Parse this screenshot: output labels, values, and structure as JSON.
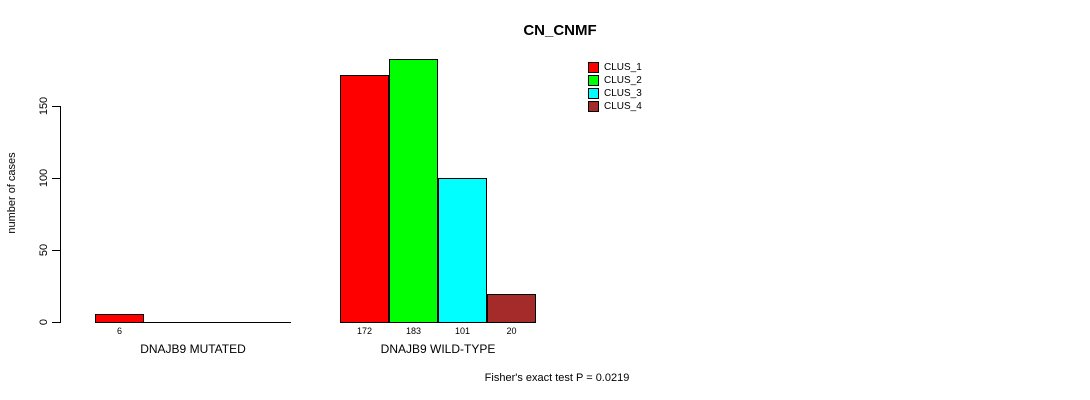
{
  "page": {
    "background_color": "#ffffff"
  },
  "chart_data": {
    "type": "bar",
    "title": "CN_CNMF",
    "xlabel": "",
    "ylabel": "number of cases",
    "ylim": [
      0,
      150
    ],
    "yticks": [
      0,
      50,
      100,
      150
    ],
    "grid": false,
    "legend_position": "top-right",
    "bar_border_color": "#000000",
    "axis_color": "#000000",
    "categories": [
      "DNAJB9 MUTATED",
      "DNAJB9 WILD-TYPE"
    ],
    "series": [
      {
        "name": "CLUS_1",
        "color": "#ff0000",
        "values": [
          6,
          172
        ]
      },
      {
        "name": "CLUS_2",
        "color": "#00ff00",
        "values": [
          0,
          183
        ]
      },
      {
        "name": "CLUS_3",
        "color": "#00ffff",
        "values": [
          0,
          101
        ]
      },
      {
        "name": "CLUS_4",
        "color": "#a52a2a",
        "values": [
          0,
          20
        ]
      }
    ],
    "value_labels": {
      "show": true,
      "hide_zero": true
    },
    "annotation": "Fisher's exact test P = 0.0219"
  }
}
